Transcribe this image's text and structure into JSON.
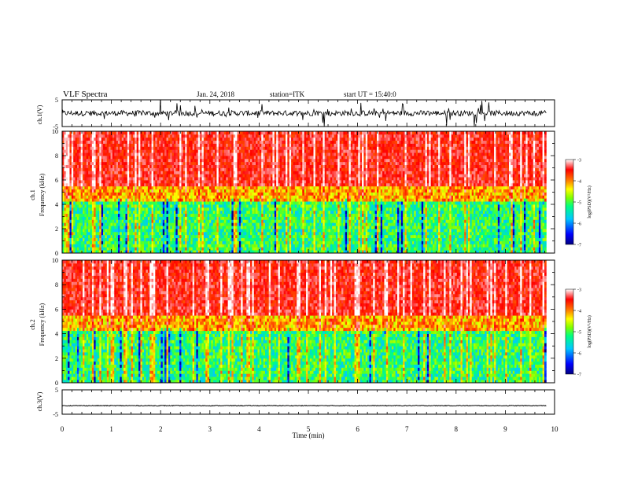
{
  "header": {
    "title": "VLF Spectra",
    "date": "Jan. 24, 2018",
    "station": "station=ITK",
    "start": "start UT = 15:40:0"
  },
  "chart_data": [
    {
      "type": "line",
      "name": "ch1_waveform",
      "ylabel": "ch.1(V)",
      "ylim": [
        -5,
        5
      ],
      "yticks": [
        "5",
        "-5"
      ],
      "xlim": [
        0,
        10
      ],
      "baseline": 0,
      "amplitude": "bursty, mostly within ±2 V, spikes to ±5 V",
      "x_end": 9.83
    },
    {
      "type": "heatmap",
      "name": "ch1_spectrogram",
      "ylabel": "ch.1\nFrequency (kHz)",
      "ylabel_lines": [
        "ch.1",
        "Frequency (kHz)"
      ],
      "ylim": [
        0,
        10
      ],
      "yticks": [
        "0",
        "2",
        "4",
        "6",
        "8",
        "10"
      ],
      "xlim": [
        0,
        10
      ],
      "x_end": 9.83,
      "colorbar": {
        "label": "log(PSD)(V²/Hz)",
        "range": [
          -7,
          -3
        ],
        "ticks": [
          "-3",
          "-4",
          "-5",
          "-6",
          "-7"
        ],
        "colors": [
          "#000080",
          "#0000ff",
          "#00c8ff",
          "#00ff80",
          "#80ff00",
          "#ffff00",
          "#ff8000",
          "#ff0000",
          "#ffffff"
        ]
      },
      "profile": "high intensity (red) above ~5 kHz, mixed green/blue below ~4 kHz"
    },
    {
      "type": "heatmap",
      "name": "ch2_spectrogram",
      "ylabel": "ch.2\nFrequency (kHz)",
      "ylabel_lines": [
        "ch.2",
        "Frequency (kHz)"
      ],
      "ylim": [
        0,
        10
      ],
      "yticks": [
        "0",
        "2",
        "4",
        "6",
        "8",
        "10"
      ],
      "xlim": [
        0,
        10
      ],
      "x_end": 9.83,
      "colorbar": {
        "label": "log(PSD)(V²/Hz)",
        "range": [
          -7,
          -3
        ],
        "ticks": [
          "-3",
          "-4",
          "-5",
          "-6",
          "-7"
        ],
        "colors": [
          "#000080",
          "#0000ff",
          "#00c8ff",
          "#00ff80",
          "#80ff00",
          "#ffff00",
          "#ff8000",
          "#ff0000",
          "#ffffff"
        ]
      },
      "profile": "high intensity (red) above ~5 kHz, mixed green/blue below ~4 kHz"
    },
    {
      "type": "line",
      "name": "ch3_waveform",
      "ylabel": "ch.3(V)",
      "ylim": [
        -5,
        5
      ],
      "yticks": [
        "5",
        "-5"
      ],
      "xlim": [
        0,
        10
      ],
      "baseline": -1.5,
      "amplitude": "flat, near constant",
      "x_end": 9.83
    }
  ],
  "xaxis": {
    "label": "Time (min)",
    "ticks": [
      "0",
      "1",
      "2",
      "3",
      "4",
      "5",
      "6",
      "7",
      "8",
      "9",
      "10"
    ]
  }
}
